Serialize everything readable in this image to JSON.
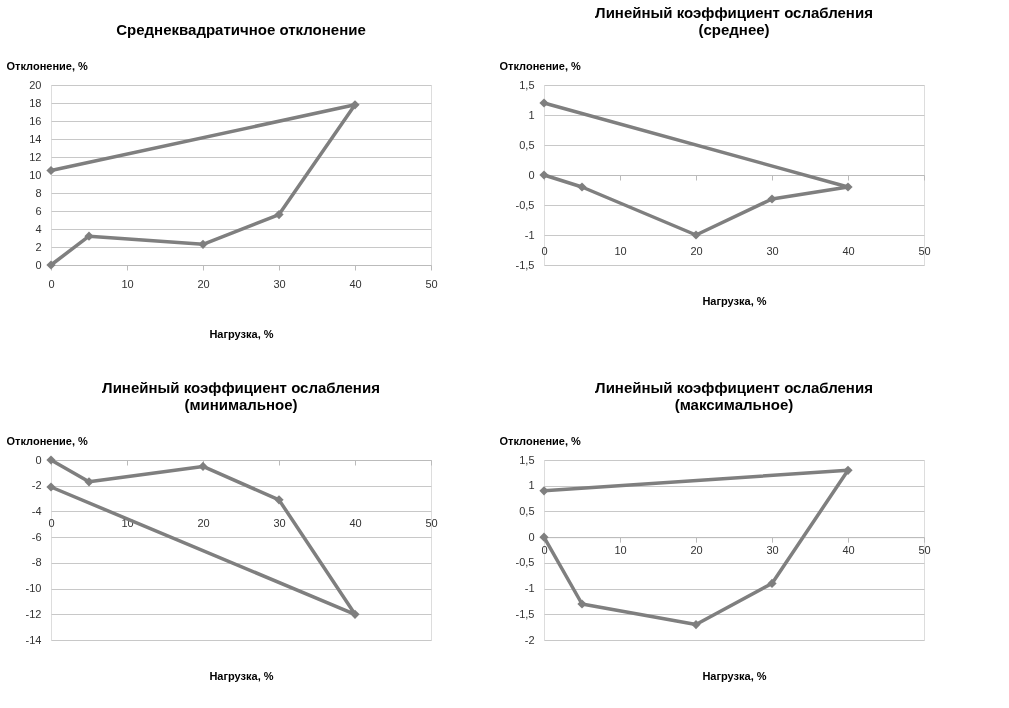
{
  "chart_data": [
    {
      "type": "line",
      "title": "Среднеквадратичное отклонение",
      "xlabel": "Нагрузка, %",
      "ylabel": "Отклонение, %",
      "x": [
        0,
        5,
        20,
        30,
        40,
        0
      ],
      "series": [
        {
          "color": "#7f7f7f",
          "values": [
            0,
            3.2,
            2.3,
            5.6,
            17.8,
            10.5
          ]
        }
      ],
      "xlim": [
        0,
        50
      ],
      "xticks": [
        0,
        10,
        20,
        30,
        40,
        50
      ],
      "ylim": [
        0,
        20
      ],
      "yticks": [
        0,
        2,
        4,
        6,
        8,
        10,
        12,
        14,
        16,
        18,
        20
      ],
      "grid": "y",
      "marker": "diamond",
      "line_style": "solid"
    },
    {
      "type": "line",
      "title": "Линейный коэффициент ослабления\n(среднее)",
      "xlabel": "Нагрузка, %",
      "ylabel": "Отклонение, %",
      "x": [
        0,
        5,
        20,
        30,
        40,
        0
      ],
      "series": [
        {
          "color": "#7f7f7f",
          "values": [
            0,
            -0.2,
            -1,
            -0.4,
            -0.2,
            1.2
          ]
        }
      ],
      "xlim": [
        0,
        50
      ],
      "xticks": [
        0,
        10,
        20,
        30,
        40,
        50
      ],
      "ylim": [
        -1.5,
        1.5
      ],
      "yticks": [
        {
          "value": -1.5,
          "label": "-1,5"
        },
        -1,
        {
          "value": -0.5,
          "label": "-0,5"
        },
        0,
        {
          "value": 0.5,
          "label": "0,5"
        },
        1,
        {
          "value": 1.5,
          "label": "1,5"
        }
      ],
      "grid": "y",
      "marker": "diamond",
      "line_style": "solid"
    },
    {
      "type": "line",
      "title": "Линейный коэффициент ослабления\n(минимальное)",
      "xlabel": "Нагрузка, %",
      "ylabel": "Отклонение, %",
      "x": [
        0,
        5,
        20,
        30,
        40,
        0
      ],
      "series": [
        {
          "color": "#7f7f7f",
          "values": [
            0,
            -1.7,
            -0.5,
            -3.1,
            -12,
            -2.1
          ]
        }
      ],
      "xlim": [
        0,
        50
      ],
      "xticks": [
        0,
        10,
        20,
        30,
        40,
        50
      ],
      "ylim": [
        -14,
        0
      ],
      "yticks": [
        -14,
        -12,
        -10,
        -8,
        -6,
        -4,
        -2,
        0
      ],
      "grid": "y",
      "marker": "diamond",
      "line_style": "solid"
    },
    {
      "type": "line",
      "title": "Линейный коэффициент ослабления\n(максимальное)",
      "xlabel": "Нагрузка, %",
      "ylabel": "Отклонение, %",
      "x": [
        0,
        5,
        20,
        30,
        40,
        0
      ],
      "series": [
        {
          "color": "#7f7f7f",
          "values": [
            0,
            -1.3,
            -1.7,
            -0.9,
            1.3,
            0.9
          ]
        }
      ],
      "xlim": [
        0,
        50
      ],
      "xticks": [
        0,
        10,
        20,
        30,
        40,
        50
      ],
      "ylim": [
        -2,
        1.5
      ],
      "yticks": [
        -2,
        {
          "value": -1.5,
          "label": "-1,5"
        },
        -1,
        {
          "value": -0.5,
          "label": "-0,5"
        },
        0,
        {
          "value": 0.5,
          "label": "0,5"
        },
        1,
        {
          "value": 1.5,
          "label": "1,5"
        }
      ],
      "grid": "y",
      "marker": "diamond",
      "line_style": "solid"
    }
  ]
}
